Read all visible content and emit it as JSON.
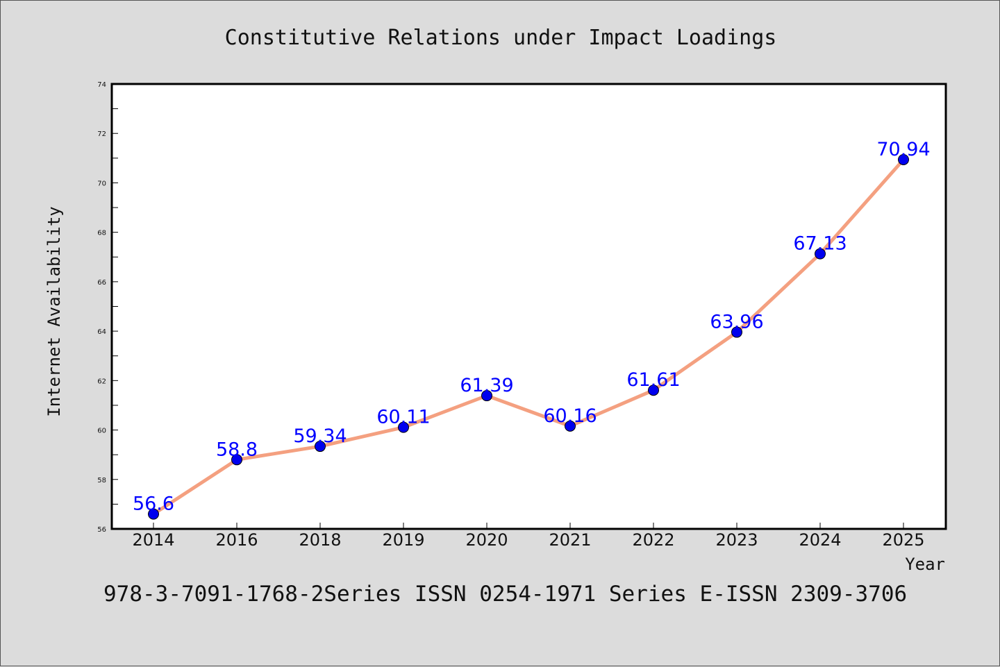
{
  "chart_data": {
    "type": "line",
    "title": "Constitutive Relations under Impact Loadings",
    "xlabel": "Year",
    "ylabel": "Internet Availability",
    "categories": [
      "2014",
      "2016",
      "2018",
      "2019",
      "2020",
      "2021",
      "2022",
      "2023",
      "2024",
      "2025"
    ],
    "series": [
      {
        "values": [
          56.6,
          58.8,
          59.34,
          60.11,
          61.39,
          60.16,
          61.61,
          63.96,
          67.13,
          70.94
        ],
        "labels": [
          "56.6",
          "58.8",
          "59.34",
          "60.11",
          "61.39",
          "60.16",
          "61.61",
          "63.96",
          "67.13",
          "70.94"
        ],
        "line_color": "#f4a080",
        "marker_color": "#0000ee"
      }
    ],
    "ylim": [
      56,
      74
    ],
    "yticks": [
      "56",
      "58",
      "60",
      "62",
      "64",
      "66",
      "68",
      "70",
      "72",
      "74"
    ],
    "grid": false,
    "legend": "none"
  },
  "footer": {
    "text": "978-3-7091-1768-2Series ISSN 0254-1971 Series E-ISSN 2309-3706"
  }
}
